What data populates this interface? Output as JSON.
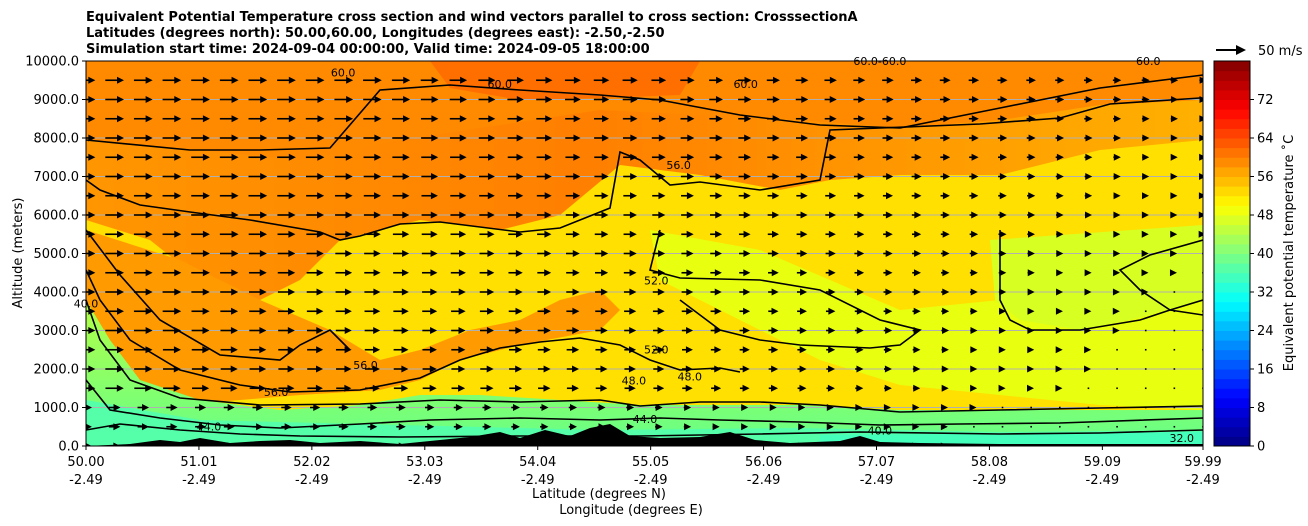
{
  "chart_data": {
    "type": "contour-cross-section",
    "title_lines": [
      "Equivalent Potential Temperature cross section and wind vectors parallel to cross section: CrosssectionA",
      "Latitudes (degrees north): 50.00,60.00, Longitudes (degrees east): -2.50,-2.50",
      "Simulation start time: 2024-09-04 00:00:00, Valid time: 2024-09-05 18:00:00"
    ],
    "ylabel": "Altitude (meters)",
    "xlabel_lat": "Latitude (degrees N)",
    "xlabel_lon": "Longitude (degrees E)",
    "xlim": [
      50.0,
      59.99
    ],
    "ylim": [
      0,
      10000
    ],
    "x_ticks": [
      {
        "lat": 50.0,
        "lat_label": "50.00",
        "lon_label": "-2.49"
      },
      {
        "lat": 51.01,
        "lat_label": "51.01",
        "lon_label": "-2.49"
      },
      {
        "lat": 52.02,
        "lat_label": "52.02",
        "lon_label": "-2.49"
      },
      {
        "lat": 53.03,
        "lat_label": "53.03",
        "lon_label": "-2.49"
      },
      {
        "lat": 54.04,
        "lat_label": "54.04",
        "lon_label": "-2.49"
      },
      {
        "lat": 55.05,
        "lat_label": "55.05",
        "lon_label": "-2.49"
      },
      {
        "lat": 56.06,
        "lat_label": "56.06",
        "lon_label": "-2.49"
      },
      {
        "lat": 57.07,
        "lat_label": "57.07",
        "lon_label": "-2.49"
      },
      {
        "lat": 58.08,
        "lat_label": "58.08",
        "lon_label": "-2.49"
      },
      {
        "lat": 59.09,
        "lat_label": "59.09",
        "lon_label": "-2.49"
      },
      {
        "lat": 59.99,
        "lat_label": "59.99",
        "lon_label": "-2.49"
      }
    ],
    "y_ticks": [
      {
        "value": 0,
        "label": "0.0"
      },
      {
        "value": 1000,
        "label": "1000.0"
      },
      {
        "value": 2000,
        "label": "2000.0"
      },
      {
        "value": 3000,
        "label": "3000.0"
      },
      {
        "value": 4000,
        "label": "4000.0"
      },
      {
        "value": 5000,
        "label": "5000.0"
      },
      {
        "value": 6000,
        "label": "6000.0"
      },
      {
        "value": 7000,
        "label": "7000.0"
      },
      {
        "value": 8000,
        "label": "8000.0"
      },
      {
        "value": 9000,
        "label": "9000.0"
      },
      {
        "value": 10000,
        "label": "10000.0"
      }
    ],
    "grid_horizontal": true,
    "colorbar": {
      "label": "Equivalent potential temperature ˚C",
      "min": 0,
      "max": 80,
      "step": 2,
      "ticks": [
        {
          "value": 0,
          "label": "0"
        },
        {
          "value": 8,
          "label": "8"
        },
        {
          "value": 16,
          "label": "16"
        },
        {
          "value": 24,
          "label": "24"
        },
        {
          "value": 32,
          "label": "32"
        },
        {
          "value": 40,
          "label": "40"
        },
        {
          "value": 48,
          "label": "48"
        },
        {
          "value": 56,
          "label": "56"
        },
        {
          "value": 64,
          "label": "64"
        },
        {
          "value": 72,
          "label": "72"
        }
      ],
      "colormap": "jet"
    },
    "quiver_key": {
      "label": "50 m/s",
      "speed": 50
    },
    "contour_levels": [
      32,
      36,
      40,
      44,
      48,
      52,
      56,
      60,
      64
    ],
    "contour_labels": [
      {
        "text": "60.0",
        "lat": 52.3,
        "alt": 9600
      },
      {
        "text": "60.0",
        "lat": 53.7,
        "alt": 9300
      },
      {
        "text": "60.0",
        "lat": 55.9,
        "alt": 9300
      },
      {
        "text": "60.0",
        "lat": 59.5,
        "alt": 9900
      },
      {
        "text": "60.0-60.0",
        "lat": 57.1,
        "alt": 9900
      },
      {
        "text": "56.0",
        "lat": 55.3,
        "alt": 7200
      },
      {
        "text": "52.0",
        "lat": 55.1,
        "alt": 4200
      },
      {
        "text": "56.0",
        "lat": 52.5,
        "alt": 2000
      },
      {
        "text": "56.0",
        "lat": 51.7,
        "alt": 1300
      },
      {
        "text": "52.0",
        "lat": 55.1,
        "alt": 2400
      },
      {
        "text": "48.0",
        "lat": 54.9,
        "alt": 1600
      },
      {
        "text": "48.0",
        "lat": 55.4,
        "alt": 1700
      },
      {
        "text": "44.0",
        "lat": 55.0,
        "alt": 600
      },
      {
        "text": "44.0",
        "lat": 51.1,
        "alt": 400
      },
      {
        "text": "40.0",
        "lat": 50.0,
        "alt": 3600
      },
      {
        "text": "40.0",
        "lat": 57.1,
        "alt": 300
      },
      {
        "text": "32.0",
        "lat": 59.8,
        "alt": 100
      }
    ],
    "wind_field_description": "Wind vectors parallel to cross section, strong (~10 m/s) in the west and mid-troposphere, weakening to near zero in the north-east."
  }
}
